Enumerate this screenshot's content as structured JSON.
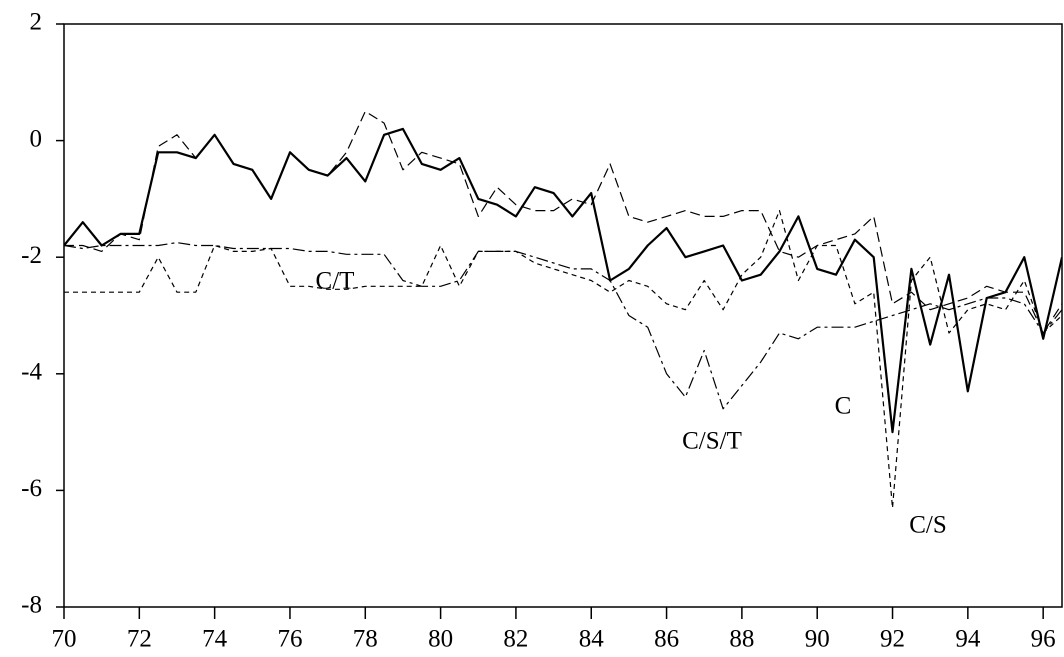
{
  "chart_data": {
    "type": "line",
    "x": [
      70,
      70.5,
      71,
      71.5,
      72,
      72.5,
      73,
      73.5,
      74,
      74.5,
      75,
      75.5,
      76,
      76.5,
      77,
      77.5,
      78,
      78.5,
      79,
      79.5,
      80,
      80.5,
      81,
      81.5,
      82,
      82.5,
      83,
      83.5,
      84,
      84.5,
      85,
      85.5,
      86,
      86.5,
      87,
      87.5,
      88,
      88.5,
      89,
      89.5,
      90,
      90.5,
      91,
      91.5,
      92,
      92.5,
      93,
      93.5,
      94,
      94.5,
      95,
      95.5,
      96,
      96.5
    ],
    "series": [
      {
        "name": "C",
        "color": "#000000",
        "values": [
          -1.8,
          -1.4,
          -1.8,
          -1.6,
          -1.6,
          -0.2,
          -0.2,
          -0.3,
          0.1,
          -0.4,
          -0.5,
          -1.0,
          -0.2,
          -0.5,
          -0.6,
          -0.3,
          -0.7,
          0.1,
          0.2,
          -0.4,
          -0.5,
          -0.3,
          -1.0,
          -1.1,
          -1.3,
          -0.8,
          -0.9,
          -1.3,
          -0.9,
          -2.4,
          -2.2,
          -1.8,
          -1.5,
          -2.0,
          -1.9,
          -1.8,
          -2.4,
          -2.3,
          -1.9,
          -1.3,
          -2.2,
          -2.3,
          -1.7,
          -2.0,
          -5.0,
          -2.2,
          -3.5,
          -2.3,
          -4.3,
          -2.7,
          -2.6,
          -2.0,
          -3.4,
          -2.0
        ]
      },
      {
        "name": "C/T",
        "color": "#000000",
        "values": [
          -2.6,
          -2.6,
          -2.6,
          -2.6,
          -2.6,
          -2.0,
          -2.6,
          -2.6,
          -1.8,
          -1.9,
          -1.9,
          -1.85,
          -2.5,
          -2.5,
          -2.55,
          -2.55,
          -2.5,
          -2.5,
          -2.5,
          -2.5,
          -1.8,
          -2.5,
          -1.9,
          -1.9,
          -1.9,
          -2.1,
          -2.2,
          -2.3,
          -2.4,
          -2.6,
          -2.4,
          -2.5,
          -2.8,
          -2.9,
          -2.4,
          -2.9,
          -2.3,
          -2.0,
          -1.2,
          -2.4,
          -1.8,
          -1.8,
          -2.8,
          -2.6,
          -6.3,
          -2.4,
          -2.0,
          -3.3,
          -2.9,
          -2.8,
          -2.9,
          -2.4,
          -3.3,
          -3.0
        ]
      },
      {
        "name": "C/S/T",
        "color": "#000000",
        "values": [
          -1.8,
          -1.85,
          -1.8,
          -1.8,
          -1.8,
          -1.8,
          -1.75,
          -1.8,
          -1.8,
          -1.85,
          -1.85,
          -1.85,
          -1.85,
          -1.9,
          -1.9,
          -1.95,
          -1.95,
          -1.95,
          -2.4,
          -2.5,
          -2.5,
          -2.4,
          -1.9,
          -1.9,
          -1.9,
          -2.0,
          -2.1,
          -2.2,
          -2.2,
          -2.4,
          -3.0,
          -3.2,
          -4.0,
          -4.4,
          -3.6,
          -4.6,
          -4.2,
          -3.8,
          -3.3,
          -3.4,
          -3.2,
          -3.2,
          -3.2,
          -3.1,
          -3.0,
          -2.9,
          -2.8,
          -2.9,
          -2.8,
          -2.7,
          -2.7,
          -2.8,
          -3.3,
          -2.9
        ]
      },
      {
        "name": "C/S",
        "color": "#000000",
        "values": [
          -1.8,
          -1.8,
          -1.9,
          -1.6,
          -1.7,
          -0.1,
          0.1,
          -0.3,
          0.1,
          -0.4,
          -0.5,
          -1.0,
          -0.2,
          -0.5,
          -0.6,
          -0.2,
          0.5,
          0.3,
          -0.5,
          -0.2,
          -0.3,
          -0.4,
          -1.3,
          -0.8,
          -1.1,
          -1.2,
          -1.2,
          -1.0,
          -1.1,
          -0.4,
          -1.3,
          -1.4,
          -1.3,
          -1.2,
          -1.3,
          -1.3,
          -1.2,
          -1.2,
          -1.9,
          -2.0,
          -1.8,
          -1.7,
          -1.6,
          -1.3,
          -2.8,
          -2.6,
          -2.9,
          -2.8,
          -2.7,
          -2.5,
          -2.6,
          -2.6,
          -3.3,
          -2.8
        ]
      }
    ],
    "xlim": [
      70,
      96.5
    ],
    "ylim": [
      -8,
      2
    ],
    "xticks": [
      70,
      72,
      74,
      76,
      78,
      80,
      82,
      84,
      86,
      88,
      90,
      92,
      94,
      96
    ],
    "yticks": [
      -8,
      -6,
      -4,
      -2,
      0,
      2
    ]
  }
}
